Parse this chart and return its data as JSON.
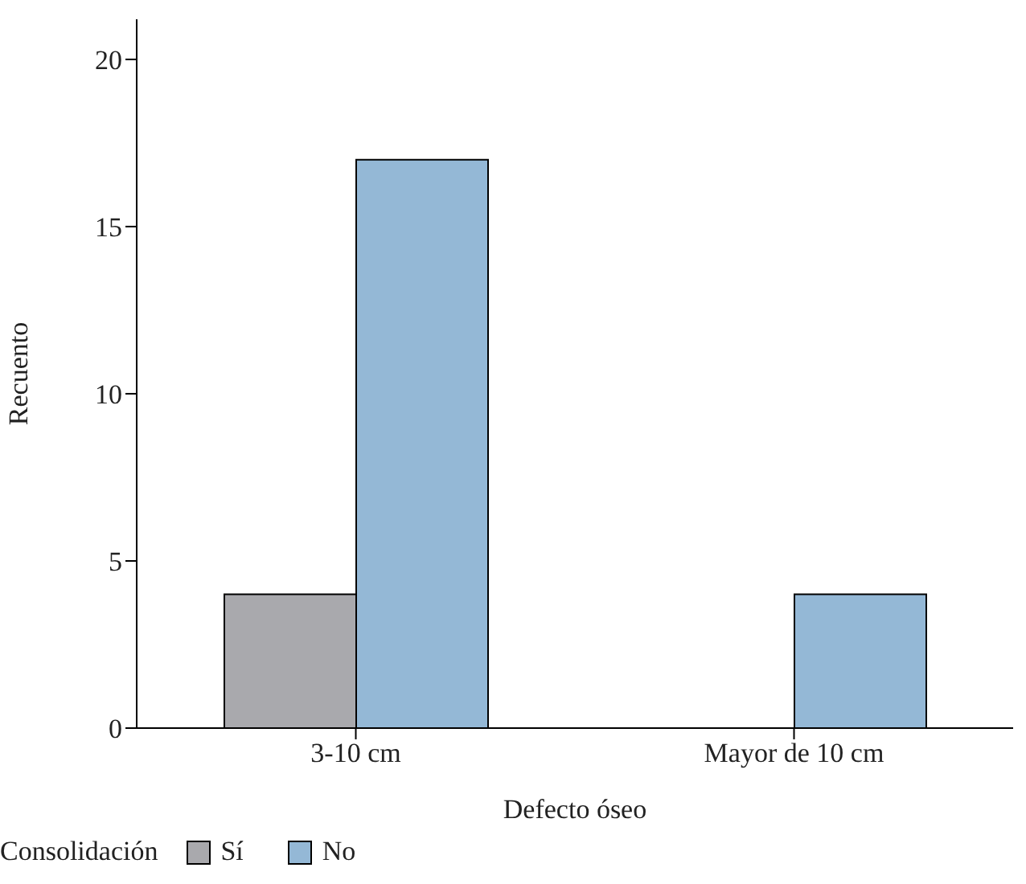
{
  "chart_data": {
    "type": "bar",
    "xlabel": "Defecto óseo",
    "ylabel": "Recuento",
    "legend_title": "Consolidación",
    "categories": [
      "3-10 cm",
      "Mayor de 10 cm"
    ],
    "series": [
      {
        "name": "Sí",
        "color": "#a9a9ad",
        "values": [
          4,
          0
        ]
      },
      {
        "name": "No",
        "color": "#94b8d6",
        "values": [
          17,
          4
        ]
      }
    ],
    "ylim": [
      0,
      21.2
    ],
    "yticks": [
      0,
      5,
      10,
      15,
      20
    ],
    "grid": false,
    "legend": "bottom left"
  }
}
